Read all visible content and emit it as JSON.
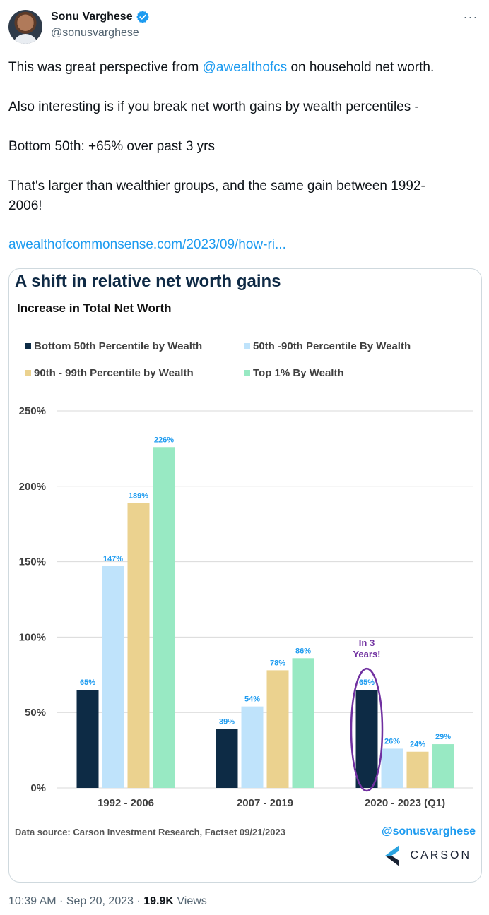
{
  "tweet": {
    "author": {
      "display_name": "Sonu Varghese",
      "handle": "@sonusvarghese",
      "verified": true
    },
    "text": {
      "p1_before": "This was great perspective from ",
      "p1_mention": "@awealthofcs",
      "p1_after": " on household net worth.",
      "p2": "Also interesting is if you break net worth gains by wealth percentiles -",
      "p3": "Bottom 50th: +65% over past 3 yrs",
      "p4": "That's larger than wealthier groups, and the same gain between 1992-2006!",
      "p5_link": "awealthofcommonsense.com/2023/09/how-ri..."
    },
    "meta": {
      "time": "10:39 AM",
      "date": "Sep 20, 2023",
      "views_count": "19.9K",
      "views_label": "Views",
      "sep": " · "
    },
    "icons": {
      "verified": "verified-badge-icon",
      "more": "more-icon"
    }
  },
  "chart_card": {
    "source_text": "Data source: Carson Investment Research, Factset   09/21/2023",
    "handle_text": "@sonusvarghese",
    "logo_text": "CARSON",
    "annotation": "In 3 Years!",
    "colors": {
      "accent": "#1d9bf0",
      "annotation": "#7030a0"
    }
  },
  "chart_data": {
    "type": "bar",
    "title": "A shift in relative net worth gains",
    "subtitle": "Increase in Total Net Worth",
    "categories": [
      "1992 - 2006",
      "2007 - 2019",
      "2020 - 2023 (Q1)"
    ],
    "series": [
      {
        "name": "Bottom 50th Percentile by Wealth",
        "values": [
          65,
          39,
          65
        ],
        "color": "#0d2b45"
      },
      {
        "name": "50th -90th Percentile By Wealth",
        "values": [
          147,
          54,
          26
        ],
        "color": "#bfe3fb"
      },
      {
        "name": "90th - 99th Percentile by Wealth",
        "values": [
          189,
          78,
          24
        ],
        "color": "#ebd28f"
      },
      {
        "name": "Top 1% By Wealth",
        "values": [
          226,
          86,
          29
        ],
        "color": "#98e9c3"
      }
    ],
    "y_ticks": [
      "0%",
      "50%",
      "100%",
      "150%",
      "200%",
      "250%"
    ],
    "ylim": [
      0,
      250
    ],
    "value_label_color": "#1d9bf0",
    "grid": true,
    "legend_position": "top"
  }
}
